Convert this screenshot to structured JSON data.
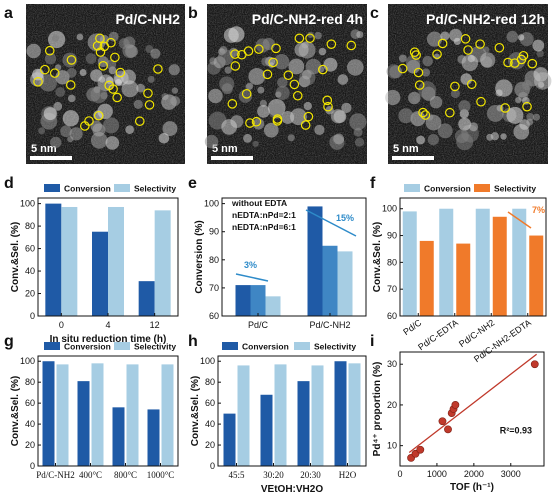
{
  "colors": {
    "dark_blue": "#1f5aa6",
    "light_blue": "#a6cde3",
    "orange": "#f07a2a",
    "red": "#c0392b",
    "note_blue": "#2e8bc9",
    "note_orange": "#f07a2a",
    "particle": "#f2e600"
  },
  "panel_labels": [
    "a",
    "b",
    "c",
    "d",
    "e",
    "f",
    "g",
    "h",
    "i"
  ],
  "tem": [
    {
      "title": "Pd/C-NH2",
      "scale": "5 nm"
    },
    {
      "title": "Pd/C-NH2-red 4h",
      "scale": "5 nm"
    },
    {
      "title": "Pd/C-NH2-red 12h",
      "scale": "5 nm"
    }
  ],
  "chart_data": [
    {
      "panel": "d",
      "type": "bar",
      "categories": [
        "0",
        "4",
        "12"
      ],
      "series": [
        {
          "name": "Conversion",
          "values": [
            100,
            75,
            31
          ]
        },
        {
          "name": "Selectivity",
          "values": [
            97,
            97,
            94
          ]
        }
      ],
      "xlabel": "In situ reduction time (h)",
      "ylabel": "Conv.&Sel. (%)",
      "ylim": [
        0,
        105
      ],
      "yticks": [
        "0",
        "20",
        "40",
        "60",
        "80",
        "100"
      ],
      "legend": "top"
    },
    {
      "panel": "e",
      "type": "bar",
      "categories": [
        "Pd/C",
        "Pd/C-NH2"
      ],
      "series": [
        {
          "name": "without EDTA",
          "values": [
            71,
            99
          ]
        },
        {
          "name": "nEDTA:nPd=2:1",
          "values": [
            71,
            85
          ]
        },
        {
          "name": "nEDTA:nPd=6:1",
          "values": [
            67,
            83
          ]
        }
      ],
      "annotations": [
        "3%",
        "15%"
      ],
      "xlabel": "",
      "ylabel": "Conversion (%)",
      "ylim": [
        60,
        102
      ],
      "yticks": [
        "60",
        "70",
        "80",
        "90",
        "100"
      ],
      "legend": "top-left"
    },
    {
      "panel": "f",
      "type": "bar",
      "categories": [
        "Pd/C",
        "Pd/C-EDTA",
        "Pd/C-NH2",
        "Pd/C-NH2-EDTA"
      ],
      "series": [
        {
          "name": "Conversion",
          "values": [
            99,
            100,
            100,
            100
          ]
        },
        {
          "name": "Selectivity",
          "values": [
            88,
            87,
            97,
            90
          ]
        }
      ],
      "annotations": [
        "7%"
      ],
      "xlabel": "",
      "ylabel": "Conv.&Sel. (%)",
      "ylim": [
        60,
        104
      ],
      "yticks": [
        "60",
        "70",
        "80",
        "90",
        "100"
      ],
      "legend": "top"
    },
    {
      "panel": "g",
      "type": "bar",
      "categories": [
        "Pd/C-NH2",
        "400°C",
        "800°C",
        "1000°C"
      ],
      "series": [
        {
          "name": "Conversion",
          "values": [
            100,
            81,
            56,
            54
          ]
        },
        {
          "name": "Selectivity",
          "values": [
            97,
            98,
            97,
            97
          ]
        }
      ],
      "xlabel": "",
      "ylabel": "Conv.&Sel. (%)",
      "ylim": [
        0,
        105
      ],
      "yticks": [
        "0",
        "20",
        "40",
        "60",
        "80",
        "100"
      ],
      "legend": "top"
    },
    {
      "panel": "h",
      "type": "bar",
      "categories": [
        "45:5",
        "30:20",
        "20:30",
        "H2O"
      ],
      "series": [
        {
          "name": "Conversion",
          "values": [
            50,
            68,
            81,
            100
          ]
        },
        {
          "name": "Selectivity",
          "values": [
            96,
            97,
            96,
            98
          ]
        }
      ],
      "xlabel": "VEtOH:VH2O",
      "ylabel": "Conv.&Sel. (%)",
      "ylim": [
        0,
        105
      ],
      "yticks": [
        "0",
        "20",
        "40",
        "60",
        "80",
        "100"
      ],
      "legend": "top"
    },
    {
      "panel": "i",
      "type": "scatter",
      "x": [
        300,
        420,
        550,
        1150,
        1300,
        1400,
        1450,
        1500,
        3650
      ],
      "y": [
        7,
        8,
        9,
        16,
        14,
        18,
        19,
        20,
        30
      ],
      "fit_label": "R²=0.93",
      "xlabel": "TOF (h⁻¹)",
      "ylabel": "Pd⁴⁺ proportion (%)",
      "xlim": [
        0,
        3900
      ],
      "ylim": [
        5,
        33
      ],
      "xticks": [
        "0",
        "1000",
        "2000",
        "3000"
      ],
      "yticks": [
        "10",
        "20",
        "30"
      ]
    }
  ]
}
